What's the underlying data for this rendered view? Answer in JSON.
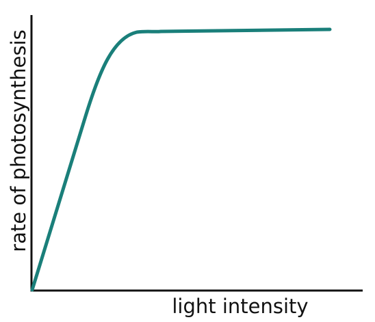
{
  "x_axis_label": "light intensity",
  "y_axis_label": "rate of photosynthesis"
}
